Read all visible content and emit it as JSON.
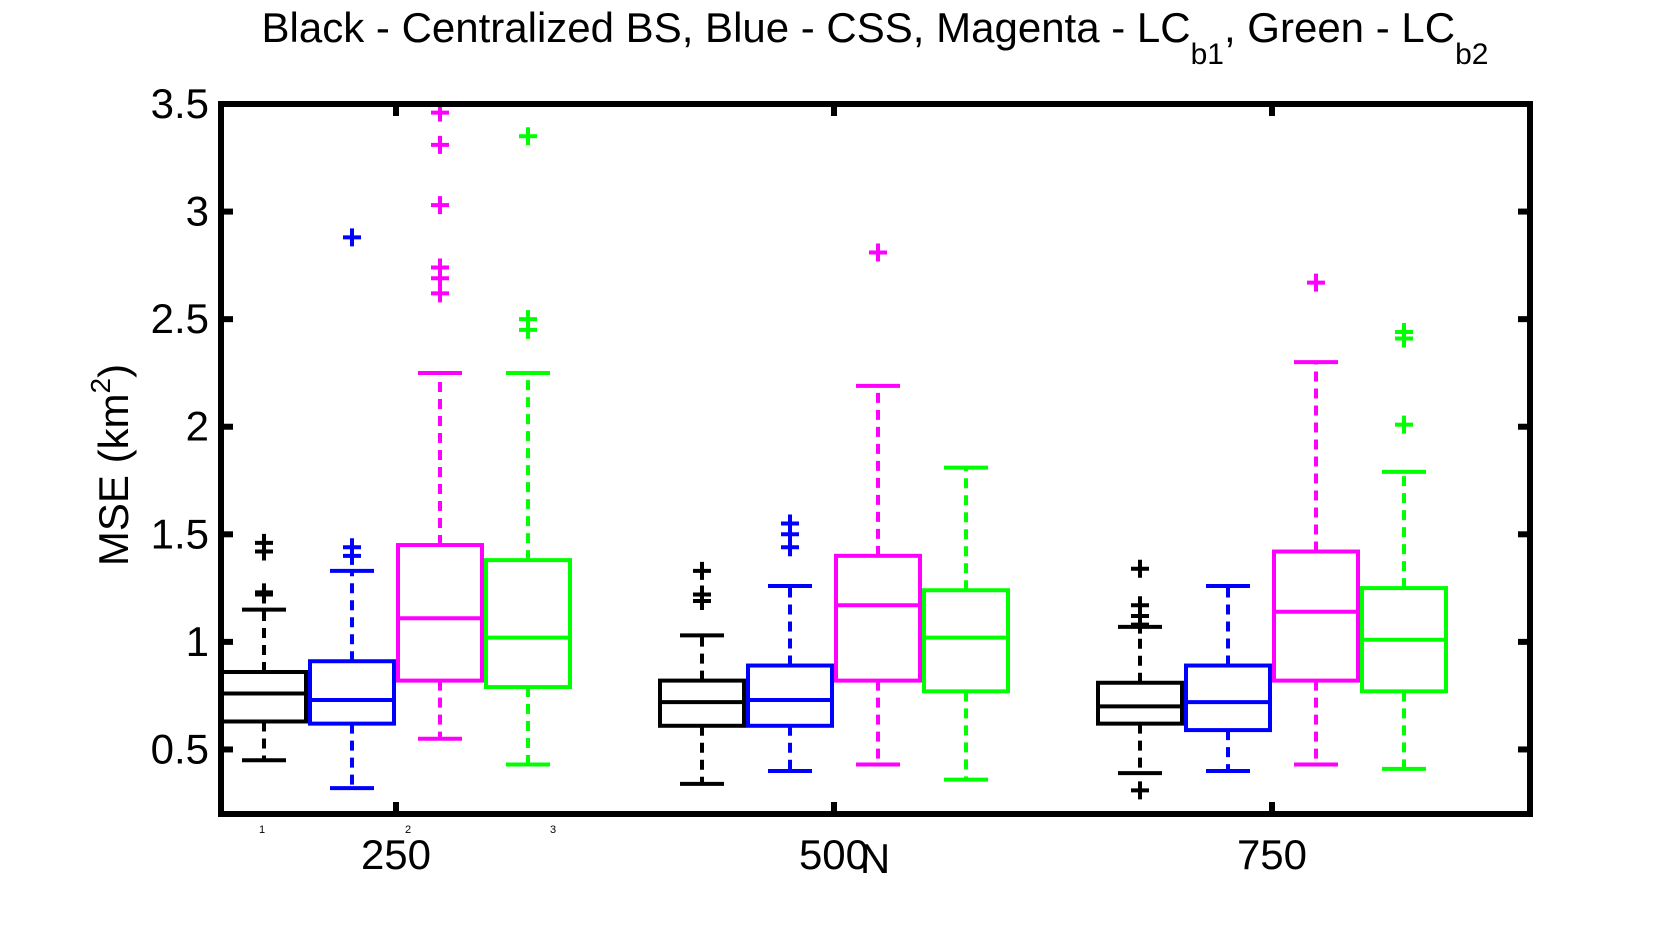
{
  "chart_data": {
    "type": "box",
    "title": {
      "parts": [
        {
          "text": "Black - Centralized BS, Blue - CSS, Magenta - LC"
        },
        {
          "text": "b1",
          "sub": true
        },
        {
          "text": ", Green - LC"
        },
        {
          "text": "b2",
          "sub": true
        }
      ]
    },
    "xlabel": "N",
    "ylabel": {
      "base": "MSE (km",
      "sup": "2",
      "end": ")"
    },
    "ylim": [
      0.2,
      3.5
    ],
    "yticks": [
      {
        "v": 0.5,
        "label": "0.5"
      },
      {
        "v": 1,
        "label": "1"
      },
      {
        "v": 1.5,
        "label": "1.5"
      },
      {
        "v": 2,
        "label": "2"
      },
      {
        "v": 2.5,
        "label": "2.5"
      },
      {
        "v": 3,
        "label": "3"
      },
      {
        "v": 3.5,
        "label": "3.5"
      }
    ],
    "categories": [
      "250",
      "500",
      "750"
    ],
    "minor_labels": [
      "1",
      "2",
      "3"
    ],
    "grid": false,
    "legend": "none",
    "series": [
      {
        "color": "#000000",
        "boxes": [
          {
            "whisker_low": 0.45,
            "q1": 0.63,
            "median": 0.76,
            "q3": 0.86,
            "whisker_high": 1.15,
            "outliers": [
              1.22,
              1.23,
              1.42,
              1.46
            ]
          },
          {
            "whisker_low": 0.34,
            "q1": 0.61,
            "median": 0.72,
            "q3": 0.82,
            "whisker_high": 1.03,
            "outliers": [
              1.19,
              1.22,
              1.33
            ]
          },
          {
            "whisker_low": 0.39,
            "q1": 0.62,
            "median": 0.7,
            "q3": 0.81,
            "whisker_high": 1.07,
            "outliers": [
              0.31,
              1.08,
              1.12,
              1.17,
              1.34
            ]
          }
        ]
      },
      {
        "color": "#0000ff",
        "boxes": [
          {
            "whisker_low": 0.32,
            "q1": 0.62,
            "median": 0.73,
            "q3": 0.91,
            "whisker_high": 1.33,
            "outliers": [
              1.4,
              1.44,
              2.88
            ]
          },
          {
            "whisker_low": 0.4,
            "q1": 0.61,
            "median": 0.73,
            "q3": 0.89,
            "whisker_high": 1.26,
            "outliers": [
              1.44,
              1.5,
              1.55
            ]
          },
          {
            "whisker_low": 0.4,
            "q1": 0.59,
            "median": 0.72,
            "q3": 0.89,
            "whisker_high": 1.26,
            "outliers": []
          }
        ]
      },
      {
        "color": "#ff00ff",
        "boxes": [
          {
            "whisker_low": 0.55,
            "q1": 0.82,
            "median": 1.11,
            "q3": 1.45,
            "whisker_high": 2.25,
            "outliers": [
              2.62,
              2.69,
              2.74,
              3.03,
              3.31,
              3.46
            ]
          },
          {
            "whisker_low": 0.43,
            "q1": 0.82,
            "median": 1.17,
            "q3": 1.4,
            "whisker_high": 2.19,
            "outliers": [
              2.81
            ]
          },
          {
            "whisker_low": 0.43,
            "q1": 0.82,
            "median": 1.14,
            "q3": 1.42,
            "whisker_high": 2.3,
            "outliers": [
              2.67
            ]
          }
        ]
      },
      {
        "color": "#00ff00",
        "boxes": [
          {
            "whisker_low": 0.43,
            "q1": 0.79,
            "median": 1.02,
            "q3": 1.38,
            "whisker_high": 2.25,
            "outliers": [
              2.45,
              2.5,
              3.35
            ]
          },
          {
            "whisker_low": 0.36,
            "q1": 0.77,
            "median": 1.02,
            "q3": 1.24,
            "whisker_high": 1.81,
            "outliers": []
          },
          {
            "whisker_low": 0.41,
            "q1": 0.77,
            "median": 1.01,
            "q3": 1.25,
            "whisker_high": 1.79,
            "outliers": [
              2.01,
              2.41,
              2.44
            ]
          }
        ]
      }
    ]
  }
}
